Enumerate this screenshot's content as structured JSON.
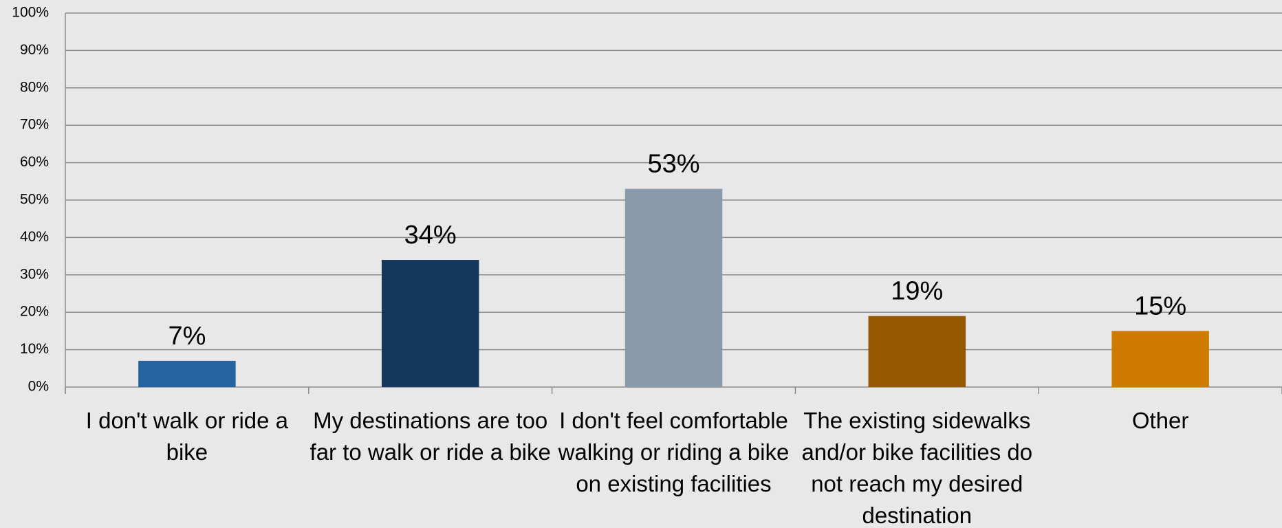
{
  "chart_data": {
    "type": "bar",
    "categories": [
      "I don't walk or ride a bike",
      "My destinations are too far to walk or ride a bike",
      "I don't feel comfortable walking or riding a bike on existing facilities",
      "The existing sidewalks and/or bike facilities do not reach my desired destination",
      "Other"
    ],
    "values": [
      7,
      34,
      53,
      19,
      15
    ],
    "value_labels": [
      "7%",
      "34%",
      "53%",
      "19%",
      "15%"
    ],
    "colors": [
      "#2763a1",
      "#16375c",
      "#8a9aab",
      "#955a00",
      "#cf7a00"
    ],
    "ylim": [
      0,
      100
    ],
    "yticks": [
      {
        "value": 0,
        "label": "0%"
      },
      {
        "value": 10,
        "label": "10%"
      },
      {
        "value": 20,
        "label": "20%"
      },
      {
        "value": 30,
        "label": "30%"
      },
      {
        "value": 40,
        "label": "40%"
      },
      {
        "value": 50,
        "label": "50%"
      },
      {
        "value": 60,
        "label": "60%"
      },
      {
        "value": 70,
        "label": "70%"
      },
      {
        "value": 80,
        "label": "80%"
      },
      {
        "value": 90,
        "label": "90%"
      },
      {
        "value": 100,
        "label": "100%"
      }
    ],
    "grid": true
  }
}
